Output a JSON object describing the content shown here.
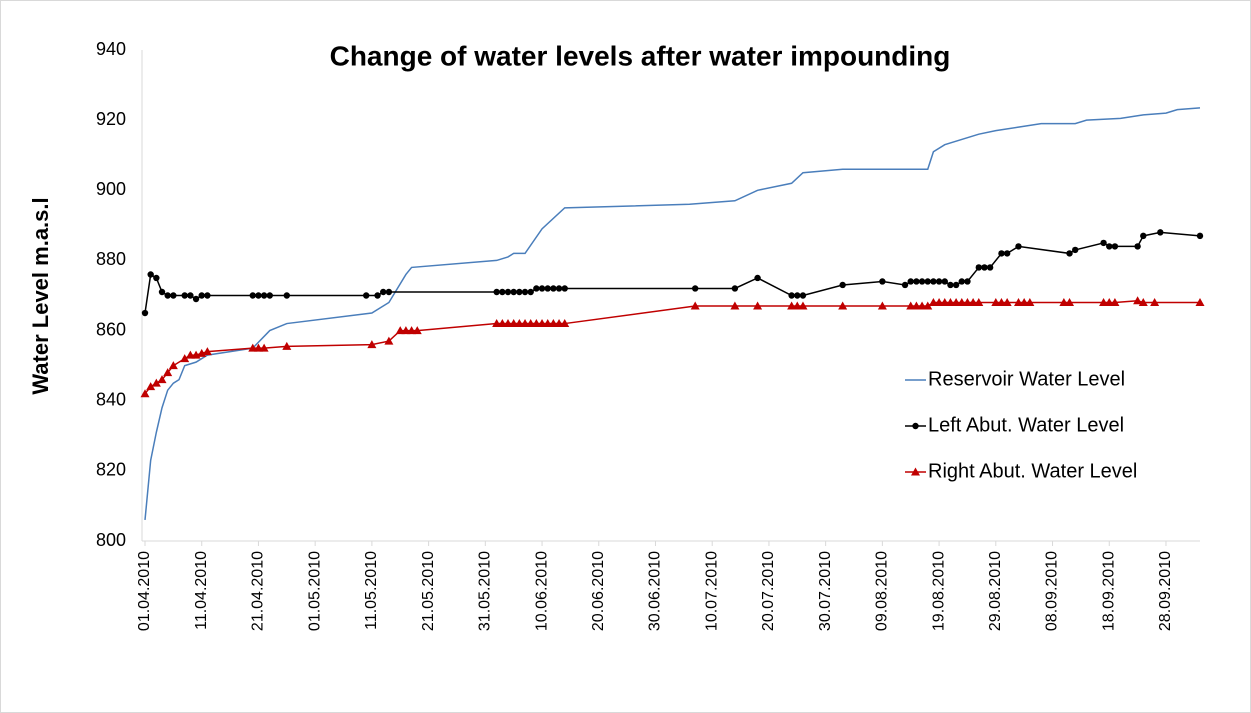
{
  "chart_data": {
    "type": "line",
    "title": "Change of water levels after water impounding",
    "y_label": "Water Level  m.a.s.l",
    "xlim": [
      "2010-04-01",
      "2010-10-04"
    ],
    "ylim": [
      800,
      940
    ],
    "yticks": [
      800,
      820,
      840,
      860,
      880,
      900,
      920,
      940
    ],
    "xticks": [
      {
        "value": "2010-04-01",
        "label": "01.04.2010"
      },
      {
        "value": "2010-04-11",
        "label": "11.04.2010"
      },
      {
        "value": "2010-04-21",
        "label": "21.04.2010"
      },
      {
        "value": "2010-05-01",
        "label": "01.05.2010"
      },
      {
        "value": "2010-05-11",
        "label": "11.05.2010"
      },
      {
        "value": "2010-05-21",
        "label": "21.05.2010"
      },
      {
        "value": "2010-05-31",
        "label": "31.05.2010"
      },
      {
        "value": "2010-06-10",
        "label": "10.06.2010"
      },
      {
        "value": "2010-06-20",
        "label": "20.06.2010"
      },
      {
        "value": "2010-06-30",
        "label": "30.06.2010"
      },
      {
        "value": "2010-07-10",
        "label": "10.07.2010"
      },
      {
        "value": "2010-07-20",
        "label": "20.07.2010"
      },
      {
        "value": "2010-07-30",
        "label": "30.07.2010"
      },
      {
        "value": "2010-08-09",
        "label": "09.08.2010"
      },
      {
        "value": "2010-08-19",
        "label": "19.08.2010"
      },
      {
        "value": "2010-08-29",
        "label": "29.08.2010"
      },
      {
        "value": "2010-09-08",
        "label": "08.09.2010"
      },
      {
        "value": "2010-09-18",
        "label": "18.09.2010"
      },
      {
        "value": "2010-09-28",
        "label": "28.09.2010"
      }
    ],
    "grid": false,
    "legend": "right",
    "series": [
      {
        "name": "Reservoir Water Level",
        "color": "#4a7ebb",
        "marker": "none",
        "x": [
          "2010-04-01",
          "2010-04-02",
          "2010-04-03",
          "2010-04-04",
          "2010-04-05",
          "2010-04-06",
          "2010-04-07",
          "2010-04-08",
          "2010-04-10",
          "2010-04-12",
          "2010-04-20",
          "2010-04-23",
          "2010-04-26",
          "2010-05-11",
          "2010-05-14",
          "2010-05-17",
          "2010-05-18",
          "2010-06-02",
          "2010-06-04",
          "2010-06-05",
          "2010-06-06",
          "2010-06-07",
          "2010-06-10",
          "2010-06-14",
          "2010-07-06",
          "2010-07-14",
          "2010-07-18",
          "2010-07-24",
          "2010-07-26",
          "2010-08-02",
          "2010-08-17",
          "2010-08-18",
          "2010-08-20",
          "2010-08-26",
          "2010-08-29",
          "2010-09-02",
          "2010-09-06",
          "2010-09-12",
          "2010-09-14",
          "2010-09-20",
          "2010-09-24",
          "2010-09-28",
          "2010-09-30",
          "2010-10-04"
        ],
        "values": [
          806,
          823,
          831,
          838,
          843,
          845,
          846,
          850,
          851,
          853,
          855,
          860,
          862,
          865,
          868,
          876,
          878,
          880,
          881,
          882,
          882,
          882,
          889,
          895,
          896,
          897,
          900,
          902,
          905,
          906,
          906,
          911,
          913,
          916,
          917,
          918,
          919,
          919,
          920,
          920.5,
          921.5,
          922,
          923,
          923.5
        ]
      },
      {
        "name": "Left Abut. Water Level",
        "color": "#000000",
        "marker": "circle",
        "x": [
          "2010-04-01",
          "2010-04-02",
          "2010-04-03",
          "2010-04-04",
          "2010-04-05",
          "2010-04-06",
          "2010-04-08",
          "2010-04-09",
          "2010-04-10",
          "2010-04-11",
          "2010-04-12",
          "2010-04-20",
          "2010-04-21",
          "2010-04-22",
          "2010-04-23",
          "2010-04-26",
          "2010-05-10",
          "2010-05-12",
          "2010-05-13",
          "2010-05-14",
          "2010-06-02",
          "2010-06-03",
          "2010-06-04",
          "2010-06-05",
          "2010-06-06",
          "2010-06-07",
          "2010-06-08",
          "2010-06-09",
          "2010-06-10",
          "2010-06-11",
          "2010-06-12",
          "2010-06-13",
          "2010-06-14",
          "2010-07-07",
          "2010-07-14",
          "2010-07-18",
          "2010-07-24",
          "2010-07-25",
          "2010-07-26",
          "2010-08-02",
          "2010-08-09",
          "2010-08-13",
          "2010-08-14",
          "2010-08-15",
          "2010-08-16",
          "2010-08-17",
          "2010-08-18",
          "2010-08-19",
          "2010-08-20",
          "2010-08-21",
          "2010-08-22",
          "2010-08-23",
          "2010-08-24",
          "2010-08-26",
          "2010-08-27",
          "2010-08-28",
          "2010-08-30",
          "2010-08-31",
          "2010-09-02",
          "2010-09-11",
          "2010-09-12",
          "2010-09-17",
          "2010-09-18",
          "2010-09-19",
          "2010-09-23",
          "2010-09-24",
          "2010-09-27",
          "2010-10-04"
        ],
        "values": [
          865,
          876,
          875,
          871,
          870,
          870,
          870,
          870,
          869,
          870,
          870,
          870,
          870,
          870,
          870,
          870,
          870,
          870,
          871,
          871,
          871,
          871,
          871,
          871,
          871,
          871,
          871,
          872,
          872,
          872,
          872,
          872,
          872,
          872,
          872,
          875,
          870,
          870,
          870,
          873,
          874,
          873,
          874,
          874,
          874,
          874,
          874,
          874,
          874,
          873,
          873,
          874,
          874,
          878,
          878,
          878,
          882,
          882,
          884,
          882,
          883,
          885,
          884,
          884,
          884,
          887,
          888,
          887
        ]
      },
      {
        "name": "Right Abut. Water Level",
        "color": "#c00000",
        "marker": "triangle",
        "x": [
          "2010-04-01",
          "2010-04-02",
          "2010-04-03",
          "2010-04-04",
          "2010-04-05",
          "2010-04-06",
          "2010-04-08",
          "2010-04-09",
          "2010-04-10",
          "2010-04-11",
          "2010-04-12",
          "2010-04-20",
          "2010-04-21",
          "2010-04-22",
          "2010-04-26",
          "2010-05-11",
          "2010-05-14",
          "2010-05-16",
          "2010-05-17",
          "2010-05-18",
          "2010-05-19",
          "2010-06-02",
          "2010-06-03",
          "2010-06-04",
          "2010-06-05",
          "2010-06-06",
          "2010-06-07",
          "2010-06-08",
          "2010-06-09",
          "2010-06-10",
          "2010-06-11",
          "2010-06-12",
          "2010-06-13",
          "2010-06-14",
          "2010-07-07",
          "2010-07-14",
          "2010-07-18",
          "2010-07-24",
          "2010-07-25",
          "2010-07-26",
          "2010-08-02",
          "2010-08-09",
          "2010-08-14",
          "2010-08-15",
          "2010-08-16",
          "2010-08-17",
          "2010-08-18",
          "2010-08-19",
          "2010-08-20",
          "2010-08-21",
          "2010-08-22",
          "2010-08-23",
          "2010-08-24",
          "2010-08-25",
          "2010-08-26",
          "2010-08-29",
          "2010-08-30",
          "2010-08-31",
          "2010-09-02",
          "2010-09-03",
          "2010-09-04",
          "2010-09-10",
          "2010-09-11",
          "2010-09-17",
          "2010-09-18",
          "2010-09-19",
          "2010-09-23",
          "2010-09-24",
          "2010-09-26",
          "2010-10-04"
        ],
        "values": [
          842,
          844,
          845,
          846,
          848,
          850,
          852,
          853,
          853,
          853.5,
          854,
          855,
          855,
          855,
          855.5,
          856,
          857,
          860,
          860,
          860,
          860,
          862,
          862,
          862,
          862,
          862,
          862,
          862,
          862,
          862,
          862,
          862,
          862,
          862,
          867,
          867,
          867,
          867,
          867,
          867,
          867,
          867,
          867,
          867,
          867,
          867,
          868,
          868,
          868,
          868,
          868,
          868,
          868,
          868,
          868,
          868,
          868,
          868,
          868,
          868,
          868,
          868,
          868,
          868,
          868,
          868,
          868.5,
          868,
          868,
          868
        ]
      }
    ]
  }
}
